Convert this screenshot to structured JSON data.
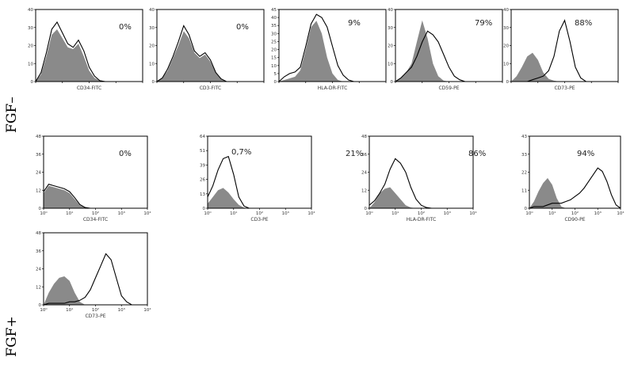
{
  "row_labels": {
    "top": "FGF–",
    "bottom": "FGF+"
  },
  "chart_data": [
    {
      "type": "area",
      "marker": "CD34-FITC",
      "xlabel": "CD34-FITC",
      "percent_label": "0%",
      "xscale": "log",
      "xlim": [
        1,
        10000
      ],
      "yticks": [
        "0",
        "10",
        "20",
        "30",
        "40"
      ],
      "ylim": [
        0,
        40
      ],
      "isotype": {
        "log_x": [
          0.0,
          0.2,
          0.4,
          0.6,
          0.8,
          1.0,
          1.2,
          1.4,
          1.6,
          1.8,
          2.0,
          2.2,
          2.4,
          2.6,
          2.8,
          3.0
        ],
        "y": [
          0,
          4,
          14,
          26,
          29,
          24,
          19,
          18,
          21,
          14,
          6,
          2,
          0.5,
          0,
          0,
          0
        ]
      },
      "stained": {
        "log_x": [
          0.0,
          0.2,
          0.4,
          0.6,
          0.8,
          1.0,
          1.2,
          1.4,
          1.6,
          1.8,
          2.0,
          2.2,
          2.4,
          2.6,
          2.8,
          3.0
        ],
        "y": [
          0,
          5,
          16,
          29,
          33,
          27,
          21,
          19,
          23,
          17,
          8,
          3,
          0.5,
          0,
          0,
          0
        ]
      }
    },
    {
      "type": "area",
      "marker": "CD3-FITC",
      "xlabel": "CD3-FITC",
      "percent_label": "0%",
      "xscale": "log",
      "xlim": [
        1,
        10000
      ],
      "yticks": [
        "0",
        "10",
        "20",
        "30",
        "40"
      ],
      "ylim": [
        0,
        40
      ],
      "isotype": {
        "log_x": [
          0.0,
          0.2,
          0.4,
          0.6,
          0.8,
          1.0,
          1.2,
          1.4,
          1.6,
          1.8,
          2.0,
          2.2,
          2.4,
          2.6,
          2.8,
          3.0
        ],
        "y": [
          0,
          2,
          6,
          13,
          20,
          28,
          24,
          16,
          13,
          15,
          11,
          5,
          1.5,
          0,
          0,
          0
        ]
      },
      "stained": {
        "log_x": [
          0.0,
          0.2,
          0.4,
          0.6,
          0.8,
          1.0,
          1.2,
          1.4,
          1.6,
          1.8,
          2.0,
          2.2,
          2.4,
          2.6,
          2.8,
          3.0
        ],
        "y": [
          0,
          2,
          7,
          14,
          22,
          31,
          26,
          17,
          14,
          16,
          12,
          5,
          1.5,
          0,
          0,
          0
        ]
      }
    },
    {
      "type": "area",
      "marker": "HLA-DR-FITC",
      "xlabel": "HLA-DR-FITC",
      "percent_label": "9%",
      "xscale": "log",
      "xlim": [
        1,
        10000
      ],
      "yticks": [
        "0",
        "5",
        "10",
        "15",
        "20",
        "25",
        "30",
        "35",
        "40",
        "45"
      ],
      "ylim": [
        0,
        45
      ],
      "isotype": {
        "log_x": [
          0.0,
          0.2,
          0.4,
          0.6,
          0.8,
          1.0,
          1.2,
          1.4,
          1.6,
          1.8,
          2.0,
          2.2,
          2.4,
          2.6,
          2.8,
          3.0,
          3.5,
          4.0
        ],
        "y": [
          0,
          1,
          2,
          3,
          7,
          20,
          34,
          38,
          30,
          15,
          5,
          1,
          0,
          0,
          0,
          0,
          0,
          0
        ]
      },
      "stained": {
        "log_x": [
          0.0,
          0.2,
          0.4,
          0.6,
          0.8,
          1.0,
          1.2,
          1.4,
          1.6,
          1.8,
          2.0,
          2.2,
          2.4,
          2.6,
          2.8,
          3.0,
          3.5,
          4.0
        ],
        "y": [
          0,
          3,
          5,
          6,
          9,
          22,
          36,
          42,
          40,
          34,
          22,
          10,
          4,
          1,
          0,
          0,
          0,
          0
        ]
      }
    },
    {
      "type": "area",
      "marker": "CD59-PE",
      "xlabel": "CD59-PE",
      "percent_label": "79%",
      "xscale": "log",
      "xlim": [
        1,
        10000
      ],
      "yticks": [
        "0",
        "10",
        "20",
        "30",
        "40"
      ],
      "ylim": [
        0,
        40
      ],
      "isotype": {
        "log_x": [
          0.0,
          0.2,
          0.4,
          0.6,
          0.8,
          1.0,
          1.2,
          1.4,
          1.6,
          1.8,
          2.0,
          2.2,
          2.4,
          2.6,
          2.8,
          3.0,
          3.5,
          4.0
        ],
        "y": [
          0,
          2,
          5,
          10,
          22,
          34,
          24,
          10,
          3,
          0.5,
          0,
          0,
          0,
          0,
          0,
          0,
          0,
          0
        ]
      },
      "stained": {
        "log_x": [
          0.0,
          0.2,
          0.4,
          0.6,
          0.8,
          1.0,
          1.2,
          1.4,
          1.6,
          1.8,
          2.0,
          2.2,
          2.4,
          2.6,
          2.8,
          3.0,
          3.5,
          4.0
        ],
        "y": [
          0,
          2,
          5,
          8,
          14,
          22,
          28,
          26,
          22,
          15,
          8,
          3,
          1,
          0,
          0,
          0,
          0,
          0
        ]
      }
    },
    {
      "type": "area",
      "marker": "CD73-PE",
      "xlabel": "CD73-PE",
      "percent_label": "88%",
      "xscale": "log",
      "xlim": [
        1,
        10000
      ],
      "yticks": [
        "0",
        "10",
        "20",
        "30",
        "40"
      ],
      "ylim": [
        0,
        40
      ],
      "isotype": {
        "log_x": [
          0.0,
          0.2,
          0.4,
          0.6,
          0.8,
          1.0,
          1.2,
          1.4,
          1.6,
          1.8,
          2.0,
          2.2,
          2.4,
          2.6,
          2.8,
          3.0,
          3.5,
          4.0
        ],
        "y": [
          0,
          3,
          8,
          14,
          16,
          12,
          5,
          1.5,
          0.5,
          0,
          0,
          0,
          0,
          0,
          0,
          0,
          0,
          0
        ]
      },
      "stained": {
        "log_x": [
          0.0,
          0.2,
          0.4,
          0.6,
          0.8,
          1.0,
          1.2,
          1.4,
          1.6,
          1.8,
          2.0,
          2.2,
          2.4,
          2.6,
          2.8,
          3.0,
          3.5,
          4.0
        ],
        "y": [
          0,
          0,
          0,
          0,
          1,
          2,
          3,
          6,
          14,
          28,
          34,
          22,
          8,
          2,
          0,
          0,
          0,
          0
        ]
      }
    },
    {
      "type": "area",
      "marker": "CD34-FITC",
      "xlabel": "CD34-FITC",
      "percent_label": "0%",
      "xscale": "log",
      "xlim": [
        1,
        10000
      ],
      "xticks": [
        "10⁰",
        "10¹",
        "10²",
        "10³",
        "10⁴"
      ],
      "yticks": [
        "0",
        "12",
        "24",
        "36",
        "48"
      ],
      "ylim": [
        0,
        48
      ],
      "isotype": {
        "log_x": [
          0.0,
          0.2,
          0.4,
          0.6,
          0.8,
          1.0,
          1.2,
          1.4,
          1.6,
          1.8,
          2.0
        ],
        "y": [
          10,
          15,
          14,
          13,
          12,
          10,
          6,
          2,
          0.5,
          0,
          0
        ]
      },
      "stained": {
        "log_x": [
          0.0,
          0.2,
          0.4,
          0.6,
          0.8,
          1.0,
          1.2,
          1.4,
          1.6,
          1.8,
          2.0
        ],
        "y": [
          11,
          16,
          15,
          14,
          13,
          11,
          7,
          2.5,
          0.5,
          0,
          0
        ]
      }
    },
    {
      "type": "area",
      "marker": "CD3-PE",
      "xlabel": "CD3-PE",
      "percent_label": "0,7%",
      "xscale": "log",
      "xlim": [
        1,
        10000
      ],
      "xticks": [
        "10⁰",
        "10¹",
        "10²",
        "10³",
        "10⁴"
      ],
      "yticks": [
        "0",
        "13",
        "26",
        "39",
        "51",
        "64"
      ],
      "ylim": [
        0,
        64
      ],
      "isotype": {
        "log_x": [
          0.0,
          0.2,
          0.4,
          0.6,
          0.8,
          1.0,
          1.2,
          1.4,
          1.6,
          1.8,
          2.0
        ],
        "y": [
          4,
          10,
          16,
          18,
          14,
          8,
          3,
          0.5,
          0,
          0,
          0
        ]
      },
      "stained": {
        "log_x": [
          0.0,
          0.2,
          0.4,
          0.6,
          0.8,
          1.0,
          1.2,
          1.4,
          1.6,
          1.8,
          2.0
        ],
        "y": [
          10,
          20,
          34,
          44,
          46,
          30,
          10,
          2,
          0,
          0,
          0
        ]
      }
    },
    {
      "type": "area",
      "marker": "HLA-DR-FITC",
      "xlabel": "HLA-DR-FITC",
      "percent_label": "86%",
      "separate_label": "21%",
      "xscale": "log",
      "xlim": [
        1,
        10000
      ],
      "xticks": [
        "10⁰",
        "10¹",
        "10²",
        "10³",
        "10⁴"
      ],
      "yticks": [
        "0",
        "12",
        "24",
        "36",
        "48"
      ],
      "ylim": [
        0,
        48
      ],
      "isotype": {
        "log_x": [
          0.0,
          0.2,
          0.4,
          0.6,
          0.8,
          1.0,
          1.2,
          1.4,
          1.6,
          1.8,
          2.0,
          2.2,
          2.4
        ],
        "y": [
          0,
          4,
          10,
          13,
          14,
          10,
          6,
          2,
          0.5,
          0,
          0,
          0,
          0
        ]
      },
      "stained": {
        "log_x": [
          0.0,
          0.2,
          0.4,
          0.6,
          0.8,
          1.0,
          1.2,
          1.4,
          1.6,
          1.8,
          2.0,
          2.2,
          2.4
        ],
        "y": [
          2,
          5,
          10,
          16,
          26,
          33,
          30,
          24,
          14,
          6,
          2,
          0.5,
          0
        ]
      }
    },
    {
      "type": "area",
      "marker": "CD90-PE",
      "xlabel": "CD90-PE",
      "percent_label": "94%",
      "xscale": "log",
      "xlim": [
        1,
        10000
      ],
      "xticks": [
        "10⁰",
        "10¹",
        "10²",
        "10³",
        "10⁴"
      ],
      "yticks": [
        "0",
        "11",
        "22",
        "33",
        "43"
      ],
      "ylim": [
        0,
        43
      ],
      "isotype": {
        "log_x": [
          0.0,
          0.2,
          0.4,
          0.6,
          0.8,
          1.0,
          1.2,
          1.4,
          1.6,
          1.8,
          2.0,
          2.2,
          2.4,
          2.6,
          2.8,
          3.0,
          3.2,
          3.4,
          3.6,
          3.8,
          4.0
        ],
        "y": [
          0,
          4,
          10,
          15,
          18,
          14,
          6,
          1,
          0,
          0,
          0,
          0,
          0,
          0,
          0,
          0,
          0,
          0,
          0,
          0,
          0
        ]
      },
      "stained": {
        "log_x": [
          0.0,
          0.2,
          0.4,
          0.6,
          0.8,
          1.0,
          1.2,
          1.4,
          1.6,
          1.8,
          2.0,
          2.2,
          2.4,
          2.6,
          2.8,
          3.0,
          3.2,
          3.4,
          3.6,
          3.8,
          4.0
        ],
        "y": [
          0,
          1,
          1,
          1,
          2,
          3,
          3,
          3,
          4,
          5,
          7,
          9,
          12,
          16,
          20,
          24,
          22,
          16,
          8,
          2,
          0
        ]
      }
    },
    {
      "type": "area",
      "marker": "CD73-PE",
      "xlabel": "CD73-PE",
      "percent_label": "",
      "xscale": "log",
      "xlim": [
        1,
        10000
      ],
      "xticks": [
        "10⁰",
        "10¹",
        "10²",
        "10³",
        "10⁴"
      ],
      "yticks": [
        "0",
        "12",
        "24",
        "36",
        "48"
      ],
      "ylim": [
        0,
        48
      ],
      "isotype": {
        "log_x": [
          0.0,
          0.2,
          0.4,
          0.6,
          0.8,
          1.0,
          1.2,
          1.4,
          1.6,
          1.8,
          2.0,
          2.2,
          2.4,
          2.6,
          2.8,
          3.0,
          3.2,
          3.4,
          3.6,
          3.8,
          4.0
        ],
        "y": [
          0,
          8,
          14,
          18,
          19,
          16,
          8,
          2,
          0,
          0,
          0,
          0,
          0,
          0,
          0,
          0,
          0,
          0,
          0,
          0,
          0
        ]
      },
      "stained": {
        "log_x": [
          0.0,
          0.2,
          0.4,
          0.6,
          0.8,
          1.0,
          1.2,
          1.4,
          1.6,
          1.8,
          2.0,
          2.2,
          2.4,
          2.6,
          2.8,
          3.0,
          3.2,
          3.4,
          3.6,
          3.8,
          4.0
        ],
        "y": [
          0,
          1,
          1,
          1,
          1,
          2,
          2,
          3,
          5,
          10,
          18,
          26,
          34,
          30,
          18,
          6,
          2,
          0,
          0,
          0,
          0
        ]
      }
    }
  ]
}
